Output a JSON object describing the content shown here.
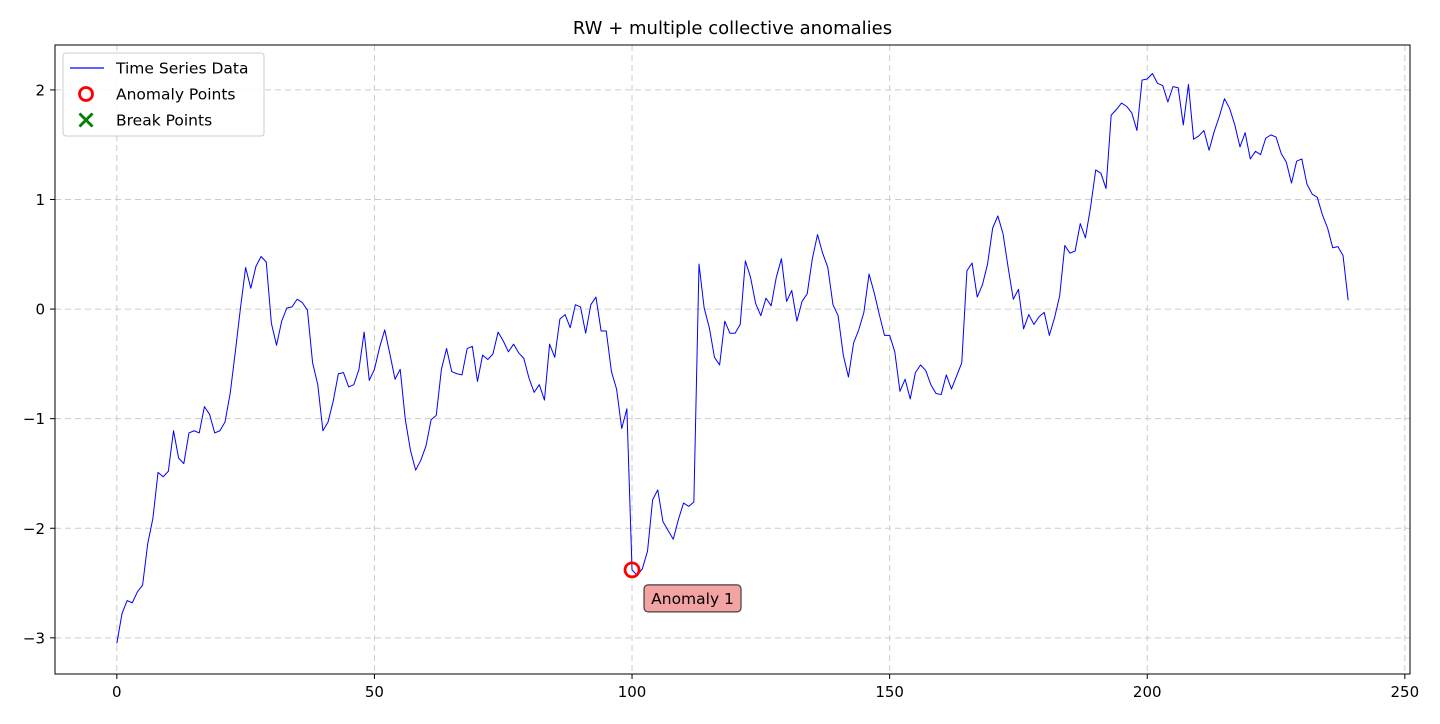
{
  "chart_data": {
    "type": "line",
    "title": "RW + multiple collective anomalies",
    "xlabel": "",
    "ylabel": "",
    "xlim": [
      -12,
      251
    ],
    "ylim": [
      -3.33,
      2.41
    ],
    "x_ticks": [
      0,
      50,
      100,
      150,
      200,
      250
    ],
    "y_ticks": [
      -3,
      -2,
      -1,
      0,
      1,
      2
    ],
    "x_tick_labels": [
      "0",
      "50",
      "100",
      "150",
      "200",
      "250"
    ],
    "y_tick_labels": [
      "−3",
      "−2",
      "−1",
      "0",
      "1",
      "2"
    ],
    "grid": true,
    "legend_position": "top-left",
    "legend": [
      {
        "label": "Time Series Data",
        "marker": "line",
        "color": "#0000ff"
      },
      {
        "label": "Anomaly Points",
        "marker": "circle",
        "color": "#ff0000"
      },
      {
        "label": "Break Points",
        "marker": "x",
        "color": "#008000"
      }
    ],
    "series": [
      {
        "name": "Time Series Data",
        "color": "#0000ff",
        "x_start": 0,
        "x_step": 1,
        "values": [
          -3.05,
          -2.78,
          -2.66,
          -2.68,
          -2.58,
          -2.52,
          -2.14,
          -1.91,
          -1.49,
          -1.53,
          -1.48,
          -1.11,
          -1.36,
          -1.41,
          -1.13,
          -1.11,
          -1.13,
          -0.89,
          -0.96,
          -1.13,
          -1.11,
          -1.03,
          -0.77,
          -0.39,
          0.01,
          0.38,
          0.19,
          0.39,
          0.48,
          0.43,
          -0.13,
          -0.33,
          -0.11,
          0.01,
          0.02,
          0.09,
          0.06,
          -0.01,
          -0.49,
          -0.69,
          -1.11,
          -1.03,
          -0.84,
          -0.59,
          -0.58,
          -0.71,
          -0.69,
          -0.55,
          -0.21,
          -0.65,
          -0.55,
          -0.35,
          -0.19,
          -0.41,
          -0.64,
          -0.55,
          -1.01,
          -1.29,
          -1.47,
          -1.38,
          -1.25,
          -1.01,
          -0.97,
          -0.55,
          -0.36,
          -0.57,
          -0.59,
          -0.6,
          -0.36,
          -0.34,
          -0.66,
          -0.42,
          -0.46,
          -0.41,
          -0.21,
          -0.29,
          -0.39,
          -0.32,
          -0.4,
          -0.45,
          -0.63,
          -0.76,
          -0.69,
          -0.83,
          -0.32,
          -0.44,
          -0.09,
          -0.05,
          -0.17,
          0.04,
          0.02,
          -0.22,
          0.04,
          0.11,
          -0.2,
          -0.2,
          -0.57,
          -0.73,
          -1.09,
          -0.91,
          -2.38,
          -2.43,
          -2.37,
          -2.21,
          -1.74,
          -1.65,
          -1.94,
          -2.02,
          -2.1,
          -1.92,
          -1.77,
          -1.8,
          -1.76,
          0.41,
          0.01,
          -0.17,
          -0.44,
          -0.51,
          -0.11,
          -0.22,
          -0.22,
          -0.14,
          0.44,
          0.29,
          0.05,
          -0.06,
          0.1,
          0.03,
          0.29,
          0.46,
          0.07,
          0.17,
          -0.11,
          0.07,
          0.14,
          0.46,
          0.68,
          0.51,
          0.38,
          0.04,
          -0.06,
          -0.42,
          -0.62,
          -0.31,
          -0.19,
          -0.03,
          0.32,
          0.15,
          -0.05,
          -0.24,
          -0.24,
          -0.39,
          -0.75,
          -0.64,
          -0.82,
          -0.58,
          -0.51,
          -0.56,
          -0.69,
          -0.77,
          -0.78,
          -0.6,
          -0.73,
          -0.61,
          -0.49,
          0.35,
          0.42,
          0.11,
          0.22,
          0.41,
          0.74,
          0.85,
          0.69,
          0.38,
          0.09,
          0.18,
          -0.18,
          -0.05,
          -0.14,
          -0.07,
          -0.03,
          -0.24,
          -0.08,
          0.12,
          0.58,
          0.51,
          0.53,
          0.78,
          0.65,
          0.93,
          1.27,
          1.24,
          1.1,
          1.77,
          1.82,
          1.88,
          1.85,
          1.79,
          1.63,
          2.09,
          2.1,
          2.15,
          2.06,
          2.04,
          1.89,
          2.03,
          2.02,
          1.68,
          2.05,
          1.55,
          1.58,
          1.63,
          1.45,
          1.62,
          1.76,
          1.92,
          1.83,
          1.68,
          1.48,
          1.61,
          1.37,
          1.44,
          1.41,
          1.56,
          1.59,
          1.57,
          1.42,
          1.34,
          1.15,
          1.35,
          1.37,
          1.14,
          1.05,
          1.02,
          0.86,
          0.74,
          0.56,
          0.57,
          0.49,
          0.08
        ]
      }
    ],
    "anomaly_points": [
      {
        "x": 100,
        "y": -2.38
      }
    ],
    "break_points": [],
    "annotations": [
      {
        "text": "Anomaly 1",
        "x": 100,
        "y": -2.38
      }
    ]
  }
}
